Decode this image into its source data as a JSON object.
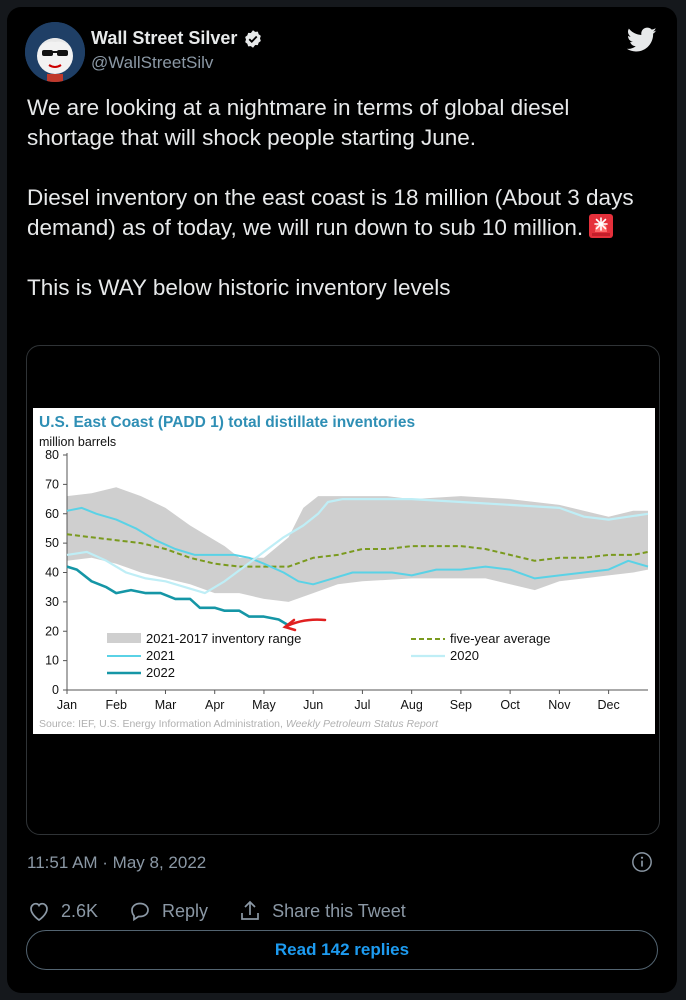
{
  "user": {
    "name": "Wall Street Silver",
    "handle": "@WallStreetSilv",
    "avatar_icon": "avatar-icon",
    "verified_icon": "verified-badge-icon"
  },
  "brand_icon": "twitter-bird-icon",
  "tweet": {
    "p1": "We are looking at a nightmare in terms of global diesel shortage that will shock people starting June.",
    "p2": "Diesel inventory on the east coast is 18 million (About 3 days demand) as of today, we will run down to sub 10 million.",
    "p2_emoji_icon": "rotating-light-icon",
    "p3": "This is WAY below historic inventory levels"
  },
  "chart_data": {
    "type": "line",
    "title": "U.S. East Coast (PADD 1) total distillate inventories",
    "ylabel": "million barrels",
    "ylim": [
      0,
      80
    ],
    "yticks": [
      "0",
      "10",
      "20",
      "30",
      "40",
      "50",
      "60",
      "70",
      "80"
    ],
    "categories": [
      "Jan",
      "Feb",
      "Mar",
      "Apr",
      "May",
      "Jun",
      "Jul",
      "Aug",
      "Sep",
      "Oct",
      "Nov",
      "Dec"
    ],
    "legend": {
      "range": "2021-2017 inventory range",
      "avg": "five-year average",
      "y2021": "2021",
      "y2020": "2020",
      "y2022": "2022"
    },
    "source_prefix": "Source: IEF, U.S. Energy Information Administration,",
    "source_italic": "Weekly Petroleum Status Report",
    "colors": {
      "range": "#cfcfcf",
      "avg": "#7a9a1e",
      "y2021": "#5ad2e6",
      "y2020": "#bfeef6",
      "y2022": "#1596a6",
      "annotation": "#e02020"
    },
    "range_upper": [
      [
        0,
        66
      ],
      [
        0.5,
        67
      ],
      [
        1,
        69
      ],
      [
        1.5,
        66
      ],
      [
        2,
        62
      ],
      [
        2.5,
        56
      ],
      [
        3,
        51
      ],
      [
        3.2,
        49
      ],
      [
        3.5,
        45
      ],
      [
        4,
        45
      ],
      [
        4.5,
        52
      ],
      [
        4.8,
        62
      ],
      [
        5.1,
        66
      ],
      [
        6,
        66
      ],
      [
        6.5,
        66
      ],
      [
        7,
        65
      ],
      [
        8,
        66
      ],
      [
        9,
        65
      ],
      [
        10,
        63
      ],
      [
        11,
        59
      ],
      [
        11.5,
        61
      ],
      [
        11.8,
        61
      ]
    ],
    "range_lower": [
      [
        0,
        44
      ],
      [
        0.5,
        45
      ],
      [
        1,
        43
      ],
      [
        1.5,
        40
      ],
      [
        2,
        38
      ],
      [
        2.5,
        36
      ],
      [
        3,
        33
      ],
      [
        3.5,
        33
      ],
      [
        4,
        31
      ],
      [
        4.5,
        30
      ],
      [
        5,
        33
      ],
      [
        5.5,
        36
      ],
      [
        6,
        37
      ],
      [
        7,
        38
      ],
      [
        8,
        38
      ],
      [
        8.5,
        38
      ],
      [
        9,
        36
      ],
      [
        9.5,
        34
      ],
      [
        10,
        37
      ],
      [
        10.5,
        38
      ],
      [
        11,
        39
      ],
      [
        11.5,
        40
      ],
      [
        11.8,
        41
      ]
    ],
    "series": [
      {
        "name": "five-year average",
        "values": [
          [
            0,
            53
          ],
          [
            0.5,
            52
          ],
          [
            1,
            51
          ],
          [
            1.5,
            50
          ],
          [
            2,
            48
          ],
          [
            2.5,
            45
          ],
          [
            3,
            43
          ],
          [
            3.5,
            42
          ],
          [
            4,
            42
          ],
          [
            4.5,
            42
          ],
          [
            5,
            45
          ],
          [
            5.5,
            46
          ],
          [
            6,
            48
          ],
          [
            6.5,
            48
          ],
          [
            7,
            49
          ],
          [
            7.5,
            49
          ],
          [
            8,
            49
          ],
          [
            8.5,
            48
          ],
          [
            9,
            46
          ],
          [
            9.5,
            44
          ],
          [
            10,
            45
          ],
          [
            10.5,
            45
          ],
          [
            11,
            46
          ],
          [
            11.5,
            46
          ],
          [
            11.8,
            47
          ]
        ]
      },
      {
        "name": "2021",
        "values": [
          [
            0,
            61
          ],
          [
            0.3,
            62
          ],
          [
            0.6,
            60
          ],
          [
            1,
            58
          ],
          [
            1.4,
            55
          ],
          [
            1.8,
            51
          ],
          [
            2.2,
            48
          ],
          [
            2.6,
            46
          ],
          [
            3,
            46
          ],
          [
            3.4,
            46
          ],
          [
            3.7,
            45
          ],
          [
            4,
            43
          ],
          [
            4.4,
            40
          ],
          [
            4.7,
            37
          ],
          [
            5,
            36
          ],
          [
            5.4,
            38
          ],
          [
            5.8,
            40
          ],
          [
            6.2,
            40
          ],
          [
            6.6,
            40
          ],
          [
            7,
            39
          ],
          [
            7.5,
            41
          ],
          [
            8,
            41
          ],
          [
            8.5,
            42
          ],
          [
            9,
            41
          ],
          [
            9.5,
            38
          ],
          [
            10,
            39
          ],
          [
            10.5,
            40
          ],
          [
            11,
            41
          ],
          [
            11.4,
            44
          ],
          [
            11.8,
            42
          ]
        ]
      },
      {
        "name": "2020",
        "values": [
          [
            0,
            46
          ],
          [
            0.4,
            47
          ],
          [
            0.8,
            44
          ],
          [
            1.2,
            40
          ],
          [
            1.6,
            38
          ],
          [
            2,
            37
          ],
          [
            2.4,
            35
          ],
          [
            2.8,
            33
          ],
          [
            3.2,
            37
          ],
          [
            3.6,
            42
          ],
          [
            4,
            47
          ],
          [
            4.4,
            52
          ],
          [
            4.8,
            56
          ],
          [
            5.1,
            60
          ],
          [
            5.3,
            64
          ],
          [
            5.6,
            65
          ],
          [
            6,
            65
          ],
          [
            7,
            65
          ],
          [
            8,
            64
          ],
          [
            9,
            63
          ],
          [
            10,
            62
          ],
          [
            10.5,
            59
          ],
          [
            11,
            58
          ],
          [
            11.4,
            59
          ],
          [
            11.8,
            60
          ]
        ]
      },
      {
        "name": "2022",
        "values": [
          [
            0,
            42
          ],
          [
            0.2,
            41
          ],
          [
            0.5,
            37
          ],
          [
            0.8,
            35
          ],
          [
            1,
            33
          ],
          [
            1.3,
            34
          ],
          [
            1.6,
            33
          ],
          [
            1.9,
            33
          ],
          [
            2.2,
            31
          ],
          [
            2.5,
            31
          ],
          [
            2.7,
            28
          ],
          [
            3,
            28
          ],
          [
            3.2,
            27
          ],
          [
            3.5,
            27
          ],
          [
            3.7,
            25
          ],
          [
            4,
            25
          ],
          [
            4.3,
            24
          ],
          [
            4.5,
            22
          ]
        ]
      }
    ]
  },
  "meta": {
    "timestamp": "11:51 AM · May 8, 2022",
    "info_icon": "info-icon"
  },
  "actions": {
    "likes": "2.6K",
    "reply": "Reply",
    "share": "Share this Tweet",
    "like_icon": "heart-icon",
    "reply_icon": "reply-icon",
    "share_icon": "share-icon"
  },
  "read_replies": "Read 142 replies"
}
